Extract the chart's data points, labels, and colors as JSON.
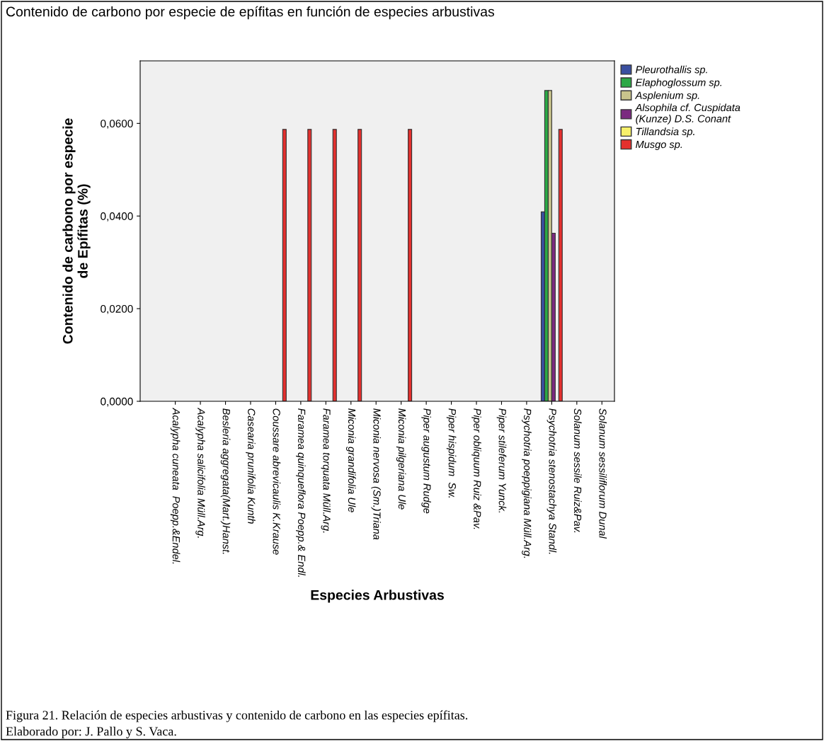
{
  "chart_data": {
    "type": "bar",
    "title": "Contenido de carbono por especie de epífitas en función de especies arbustivas",
    "xlabel": "Especies Arbustivas",
    "ylabel": "Contenido de carbono por especie\nde Epífitas (%)",
    "categories": [
      "Acalypha cuneata  Poepp.&Endel.",
      "Acalypha salicifolia Müll.Arg.",
      "Besleria aggregata(Mart.)Hanst.",
      "Casearia prunifolia Kunth",
      "Coussare abrevicaulis K.Krause",
      "Faramea quinqueflora Poepp.& Endl.",
      "Faramea torquata Müll.Arg.",
      "Miconia grandifolia Ule",
      "Miconia nervosa (Sm.)Triana",
      "Miconia pilgeriana Ule",
      "Piper augustum Rudge",
      "Piper hispidum  Sw.",
      "Piper obliquum Ruiz &Pav.",
      "Piper stileferum Yunck.",
      "Psychotria poeppigiana Müll.Arg.",
      "Psychotria stenostachya Standl.",
      "Solanum sessile Ruiz&Pav.",
      "Solanum sessiliflorum Dunal"
    ],
    "series": [
      {
        "name": "Pleurothallis sp.",
        "color": "#3a4fa0",
        "values": [
          null,
          null,
          null,
          null,
          null,
          null,
          null,
          null,
          null,
          null,
          null,
          null,
          null,
          null,
          null,
          0.0409,
          null,
          null
        ]
      },
      {
        "name": "Elaphoglossum sp.",
        "color": "#2ca845",
        "values": [
          null,
          null,
          null,
          null,
          null,
          null,
          null,
          null,
          null,
          null,
          null,
          null,
          null,
          null,
          null,
          0.0671,
          null,
          null
        ]
      },
      {
        "name": "Asplenium sp.",
        "color": "#c9c48c",
        "values": [
          null,
          null,
          null,
          null,
          null,
          null,
          null,
          null,
          null,
          null,
          null,
          null,
          null,
          null,
          null,
          0.0671,
          null,
          null
        ]
      },
      {
        "name": "Alsophila cf. Cuspidata\n(Kunze) D.S. Conant",
        "color": "#7b2a80",
        "values": [
          null,
          null,
          null,
          null,
          null,
          null,
          null,
          null,
          null,
          null,
          null,
          null,
          null,
          null,
          null,
          0.0363,
          null,
          null
        ]
      },
      {
        "name": "Tillandsia sp.",
        "color": "#f6f06a",
        "values": [
          null,
          null,
          null,
          null,
          null,
          null,
          null,
          null,
          null,
          null,
          null,
          null,
          null,
          null,
          null,
          null,
          null,
          null
        ]
      },
      {
        "name": "Musgo sp.",
        "color": "#e3302e",
        "values": [
          null,
          null,
          null,
          null,
          0.0587,
          0.0587,
          0.0587,
          0.0587,
          null,
          0.0587,
          null,
          null,
          null,
          null,
          null,
          0.0587,
          null,
          null
        ]
      }
    ],
    "ylim": [
      0,
      0.0735
    ],
    "yticks": [
      {
        "value": 0,
        "label": "0,0000"
      },
      {
        "value": 0.02,
        "label": "0,0200"
      },
      {
        "value": 0.04,
        "label": "0,0400"
      },
      {
        "value": 0.06,
        "label": "0,0600"
      }
    ],
    "grid": false,
    "legend": "right",
    "annotations": [
      "Figura 21. Relación de especies arbustivas y contenido de carbono en las especies epífitas.",
      "Elaborado por: J. Pallo y S. Vaca."
    ]
  }
}
